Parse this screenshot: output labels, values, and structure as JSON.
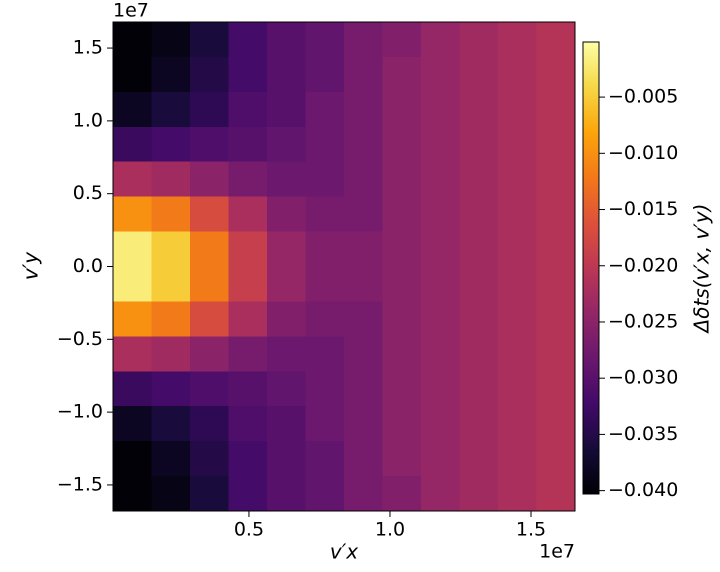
{
  "chart_data": {
    "type": "heatmap",
    "xlabel": "v′x",
    "ylabel": "v′y",
    "colorbar_label": "Δδts(v′x, v′y)",
    "x_offset": "1e7",
    "y_offset": "1e7",
    "xlim": [
      180000,
      16560000
    ],
    "ylim": [
      -16790000,
      16790000
    ],
    "xticks": [
      {
        "value": 5000000,
        "label": "0.5"
      },
      {
        "value": 10000000,
        "label": "1.0"
      },
      {
        "value": 15000000,
        "label": "1.5"
      }
    ],
    "yticks": [
      {
        "value": -15000000,
        "label": "−1.5"
      },
      {
        "value": -10000000,
        "label": "−1.0"
      },
      {
        "value": -5000000,
        "label": "−0.5"
      },
      {
        "value": 0,
        "label": "0.0"
      },
      {
        "value": 5000000,
        "label": "0.5"
      },
      {
        "value": 10000000,
        "label": "1.0"
      },
      {
        "value": 15000000,
        "label": "1.5"
      }
    ],
    "colormap": "inferno",
    "clim": [
      -0.0403,
      -0.0001
    ],
    "cticks": [
      {
        "value": -0.04,
        "label": "−0.040"
      },
      {
        "value": -0.035,
        "label": "−0.035"
      },
      {
        "value": -0.03,
        "label": "−0.030"
      },
      {
        "value": -0.025,
        "label": "−0.025"
      },
      {
        "value": -0.02,
        "label": "−0.020"
      },
      {
        "value": -0.015,
        "label": "−0.015"
      },
      {
        "value": -0.01,
        "label": "−0.010"
      },
      {
        "value": -0.005,
        "label": "−0.005"
      }
    ],
    "z": [
      [
        -0.04,
        -0.039,
        -0.036,
        -0.032,
        -0.03,
        -0.029,
        -0.027,
        -0.026,
        -0.024,
        -0.023,
        -0.022,
        -0.021
      ],
      [
        -0.04,
        -0.038,
        -0.035,
        -0.032,
        -0.03,
        -0.029,
        -0.027,
        -0.025,
        -0.024,
        -0.023,
        -0.022,
        -0.021
      ],
      [
        -0.038,
        -0.036,
        -0.034,
        -0.031,
        -0.03,
        -0.028,
        -0.027,
        -0.025,
        -0.024,
        -0.023,
        -0.022,
        -0.021
      ],
      [
        -0.033,
        -0.032,
        -0.031,
        -0.03,
        -0.029,
        -0.028,
        -0.027,
        -0.025,
        -0.024,
        -0.023,
        -0.022,
        -0.021
      ],
      [
        -0.022,
        -0.023,
        -0.025,
        -0.027,
        -0.028,
        -0.028,
        -0.027,
        -0.025,
        -0.024,
        -0.023,
        -0.022,
        -0.021
      ],
      [
        -0.01,
        -0.012,
        -0.017,
        -0.022,
        -0.026,
        -0.027,
        -0.027,
        -0.025,
        -0.024,
        -0.023,
        -0.022,
        -0.021
      ],
      [
        -0.002,
        -0.005,
        -0.012,
        -0.019,
        -0.024,
        -0.026,
        -0.026,
        -0.025,
        -0.024,
        -0.023,
        -0.022,
        -0.021
      ],
      [
        -0.002,
        -0.005,
        -0.012,
        -0.019,
        -0.024,
        -0.026,
        -0.026,
        -0.025,
        -0.024,
        -0.023,
        -0.022,
        -0.021
      ],
      [
        -0.01,
        -0.012,
        -0.017,
        -0.022,
        -0.026,
        -0.027,
        -0.027,
        -0.025,
        -0.024,
        -0.023,
        -0.022,
        -0.021
      ],
      [
        -0.022,
        -0.023,
        -0.025,
        -0.027,
        -0.028,
        -0.028,
        -0.027,
        -0.025,
        -0.024,
        -0.023,
        -0.022,
        -0.021
      ],
      [
        -0.033,
        -0.032,
        -0.031,
        -0.03,
        -0.029,
        -0.028,
        -0.027,
        -0.025,
        -0.024,
        -0.023,
        -0.022,
        -0.021
      ],
      [
        -0.038,
        -0.036,
        -0.034,
        -0.031,
        -0.03,
        -0.028,
        -0.027,
        -0.025,
        -0.024,
        -0.023,
        -0.022,
        -0.021
      ],
      [
        -0.04,
        -0.038,
        -0.035,
        -0.032,
        -0.03,
        -0.029,
        -0.027,
        -0.025,
        -0.024,
        -0.023,
        -0.022,
        -0.021
      ],
      [
        -0.04,
        -0.039,
        -0.036,
        -0.032,
        -0.03,
        -0.029,
        -0.027,
        -0.026,
        -0.024,
        -0.023,
        -0.022,
        -0.021
      ]
    ]
  }
}
